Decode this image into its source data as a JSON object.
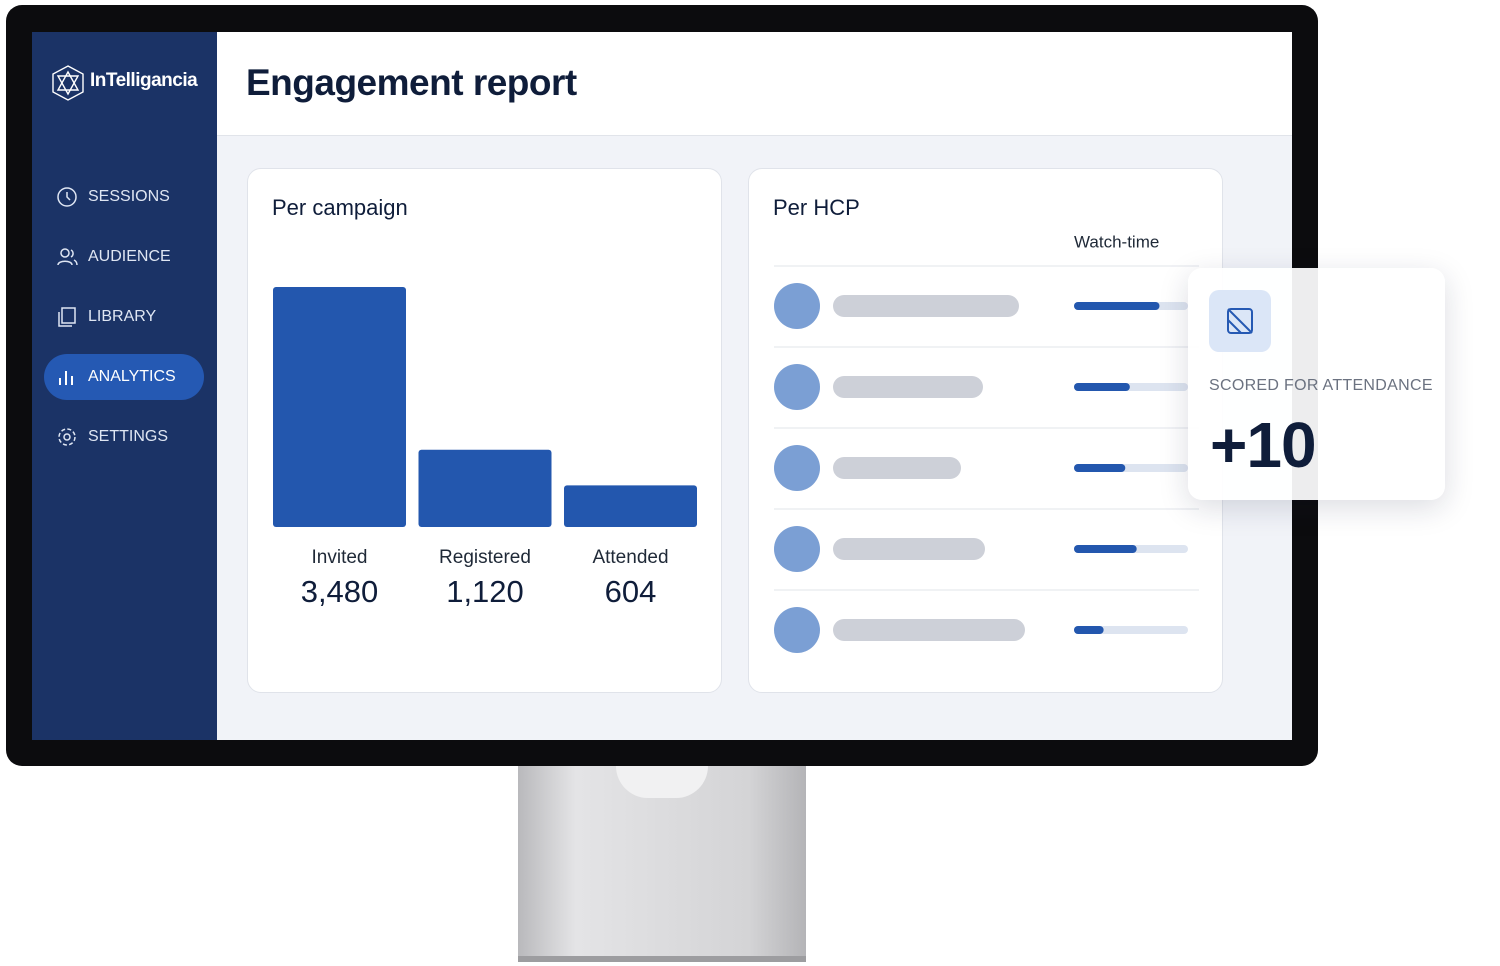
{
  "sidebar": {
    "logo": "InTelligancia",
    "nav": {
      "items": [
        "SESSIONS",
        "AUDIENCE",
        "LIBRARY",
        "ANALYTICS",
        "SETTINGS"
      ],
      "active": 3
    }
  },
  "header": {
    "title": "Engagement report"
  },
  "campaign": {
    "title": "Per campaign",
    "items": [
      {
        "label": "Invited",
        "value": 3480,
        "value_label": "3,480"
      },
      {
        "label": "Registered",
        "value": 1120,
        "value_label": "1,120"
      },
      {
        "label": "Attended",
        "value": 604,
        "value_label": "604"
      }
    ]
  },
  "hcp": {
    "title": "Per HCP",
    "column": "Watch-time",
    "watch_time": [
      75,
      49,
      45,
      55,
      26
    ]
  },
  "popup": {
    "label": "SCORED FOR ATTENDANCE",
    "value": "+10"
  }
}
